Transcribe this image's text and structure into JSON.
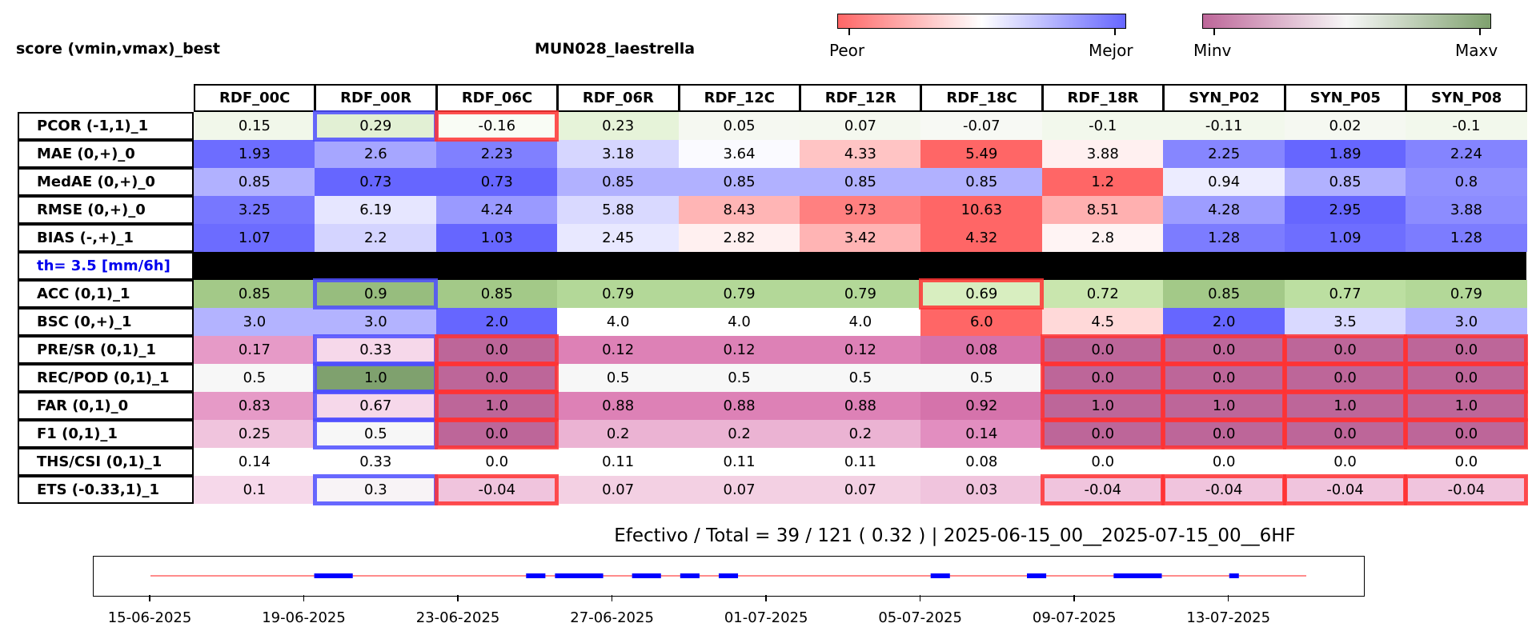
{
  "header": {
    "left_title": "score (vmin,vmax)_best",
    "station": "MUN028_laestrella"
  },
  "colorbars": {
    "score": {
      "left_label": "Peor",
      "right_label": "Mejor",
      "low": "#ff6666",
      "mid": "#ffffff",
      "high": "#6666ff"
    },
    "contingency": {
      "left_label": "Minv",
      "right_label": "Maxv",
      "low": "#bd6699",
      "mid": "#f7f7f7",
      "high": "#7fa16e"
    }
  },
  "table": {
    "columns": [
      "RDF_00C",
      "RDF_00R",
      "RDF_06C",
      "RDF_06R",
      "RDF_12C",
      "RDF_12R",
      "RDF_18C",
      "RDF_18R",
      "SYN_P02",
      "SYN_P05",
      "SYN_P08"
    ],
    "threshold_label": "th= 3.5 [mm/6h]",
    "rows": [
      {
        "label": "PCOR (-1,1)_1",
        "values": [
          "0.15",
          "0.29",
          "-0.16",
          "0.23",
          "0.05",
          "0.07",
          "-0.07",
          "-0.1",
          "-0.11",
          "0.02",
          "-0.1"
        ],
        "colors": [
          "#f1f7ea",
          "#e2f0d4",
          "#f9fcf5",
          "#e6f3d9",
          "#f5f8f1",
          "#f4f8ef",
          "#f7f9f4",
          "#f2f8ec",
          "#f2f8ec",
          "#f5f8f1",
          "#f2f8ec"
        ]
      },
      {
        "label": "MAE (0,+)_0",
        "values": [
          "1.93",
          "2.6",
          "2.23",
          "3.18",
          "3.64",
          "4.33",
          "5.49",
          "3.88",
          "2.25",
          "1.89",
          "2.24"
        ],
        "colors": [
          "#6d6dff",
          "#a6a6ff",
          "#8080ff",
          "#d6d6ff",
          "#fafaff",
          "#ffc4c4",
          "#ff6666",
          "#fff0f0",
          "#8686ff",
          "#6666ff",
          "#8484ff"
        ]
      },
      {
        "label": "MedAE (0,+)_0",
        "values": [
          "0.85",
          "0.73",
          "0.73",
          "0.85",
          "0.85",
          "0.85",
          "0.85",
          "1.2",
          "0.94",
          "0.85",
          "0.8"
        ],
        "colors": [
          "#b1b1ff",
          "#6666ff",
          "#6666ff",
          "#b1b1ff",
          "#b1b1ff",
          "#b1b1ff",
          "#b1b1ff",
          "#ff6666",
          "#ececff",
          "#b1b1ff",
          "#9191ff"
        ]
      },
      {
        "label": "RMSE (0,+)_0",
        "values": [
          "3.25",
          "6.19",
          "4.24",
          "5.88",
          "8.43",
          "9.73",
          "10.63",
          "8.51",
          "4.28",
          "2.95",
          "3.88"
        ],
        "colors": [
          "#7777ff",
          "#e6e6ff",
          "#9a9aff",
          "#d9d9ff",
          "#ffb5b5",
          "#ff8080",
          "#ff6666",
          "#ffb0b0",
          "#9d9dff",
          "#6666ff",
          "#8c8cff"
        ]
      },
      {
        "label": "BIAS (-,+)_1",
        "values": [
          "1.07",
          "2.2",
          "1.03",
          "2.45",
          "2.82",
          "3.42",
          "4.32",
          "2.8",
          "1.28",
          "1.09",
          "1.28"
        ],
        "colors": [
          "#6c6cff",
          "#d4d4ff",
          "#6666ff",
          "#e8e8ff",
          "#fff0f0",
          "#ffb4b4",
          "#ff6666",
          "#fff4f4",
          "#7c7cff",
          "#6e6eff",
          "#7c7cff"
        ]
      },
      {
        "label": "ACC (0,1)_1",
        "values": [
          "0.85",
          "0.9",
          "0.85",
          "0.79",
          "0.79",
          "0.79",
          "0.69",
          "0.72",
          "0.85",
          "0.77",
          "0.79"
        ],
        "colors": [
          "#a3c988",
          "#97bd7e",
          "#a3c988",
          "#b3d898",
          "#b3d898",
          "#b3d898",
          "#d8eec0",
          "#c9e6ae",
          "#a3c988",
          "#bcdfa1",
          "#b3d898"
        ]
      },
      {
        "label": "BSC (0,+)_1",
        "values": [
          "3.0",
          "3.0",
          "2.0",
          "4.0",
          "4.0",
          "4.0",
          "6.0",
          "4.5",
          "2.0",
          "3.5",
          "3.0"
        ],
        "colors": [
          "#b3b3ff",
          "#b3b3ff",
          "#6666ff",
          "#ffffff",
          "#ffffff",
          "#ffffff",
          "#ff6666",
          "#ffd9d9",
          "#6666ff",
          "#d9d9ff",
          "#b3b3ff"
        ]
      },
      {
        "label": "PRE/SR (0,1)_1",
        "values": [
          "0.17",
          "0.33",
          "0.0",
          "0.12",
          "0.12",
          "0.12",
          "0.08",
          "0.0",
          "0.0",
          "0.0",
          "0.0"
        ],
        "colors": [
          "#e69ac7",
          "#f6d8ea",
          "#bd6699",
          "#dd81b6",
          "#dd81b6",
          "#dd81b6",
          "#d573ab",
          "#bd6699",
          "#bd6699",
          "#bd6699",
          "#bd6699"
        ]
      },
      {
        "label": "REC/POD (0,1)_1",
        "values": [
          "0.5",
          "1.0",
          "0.0",
          "0.5",
          "0.5",
          "0.5",
          "0.5",
          "0.0",
          "0.0",
          "0.0",
          "0.0"
        ],
        "colors": [
          "#f7f7f7",
          "#7fa16e",
          "#bd6699",
          "#f7f7f7",
          "#f7f7f7",
          "#f7f7f7",
          "#f7f7f7",
          "#bd6699",
          "#bd6699",
          "#bd6699",
          "#bd6699"
        ]
      },
      {
        "label": "FAR (0,1)_0",
        "values": [
          "0.83",
          "0.67",
          "1.0",
          "0.88",
          "0.88",
          "0.88",
          "0.92",
          "1.0",
          "1.0",
          "1.0",
          "1.0"
        ],
        "colors": [
          "#e69ac7",
          "#f6d8ea",
          "#bd6699",
          "#dd81b6",
          "#dd81b6",
          "#dd81b6",
          "#d573ab",
          "#bd6699",
          "#bd6699",
          "#bd6699",
          "#bd6699"
        ]
      },
      {
        "label": "F1 (0,1)_1",
        "values": [
          "0.25",
          "0.5",
          "0.0",
          "0.2",
          "0.2",
          "0.2",
          "0.14",
          "0.0",
          "0.0",
          "0.0",
          "0.0"
        ],
        "colors": [
          "#f0c4dd",
          "#f7f7f7",
          "#bd6699",
          "#ebb3d3",
          "#ebb3d3",
          "#ebb3d3",
          "#e28ec0",
          "#bd6699",
          "#bd6699",
          "#bd6699",
          "#bd6699"
        ]
      },
      {
        "label": "THS/CSI (0,1)_1",
        "values": [
          "0.14",
          "0.33",
          "0.0",
          "0.11",
          "0.11",
          "0.11",
          "0.08",
          "0.0",
          "0.0",
          "0.0",
          "0.0"
        ],
        "colors": [
          "#ffffff",
          "#ffffff",
          "#ffffff",
          "#ffffff",
          "#ffffff",
          "#ffffff",
          "#ffffff",
          "#ffffff",
          "#ffffff",
          "#ffffff",
          "#ffffff"
        ]
      },
      {
        "label": "ETS (-0.33,1)_1",
        "values": [
          "0.1",
          "0.3",
          "-0.04",
          "0.07",
          "0.07",
          "0.07",
          "0.03",
          "-0.04",
          "-0.04",
          "-0.04",
          "-0.04"
        ],
        "colors": [
          "#f6d8ea",
          "#f8f3f6",
          "#f0c4dd",
          "#f3d0e3",
          "#f3d0e3",
          "#f3d0e3",
          "#f0c4dd",
          "#f0c4dd",
          "#f0c4dd",
          "#f0c4dd",
          "#f0c4dd"
        ]
      }
    ],
    "highlights": [
      {
        "row": 0,
        "col": 1,
        "kind": "best"
      },
      {
        "row": 0,
        "col": 2,
        "kind": "worst"
      },
      {
        "row": 5,
        "col": 1,
        "kind": "best"
      },
      {
        "row": 5,
        "col": 6,
        "kind": "worst"
      },
      {
        "row": 7,
        "col": 1,
        "kind": "best"
      },
      {
        "row": 8,
        "col": 1,
        "kind": "best"
      },
      {
        "row": 9,
        "col": 1,
        "kind": "best"
      },
      {
        "row": 10,
        "col": 1,
        "kind": "best"
      },
      {
        "row": 12,
        "col": 1,
        "kind": "best"
      },
      {
        "row": 7,
        "col": 2,
        "kind": "worst"
      },
      {
        "row": 8,
        "col": 2,
        "kind": "worst"
      },
      {
        "row": 9,
        "col": 2,
        "kind": "worst"
      },
      {
        "row": 10,
        "col": 2,
        "kind": "worst"
      },
      {
        "row": 12,
        "col": 2,
        "kind": "worst"
      },
      {
        "row": 7,
        "col": 7,
        "kind": "worst"
      },
      {
        "row": 7,
        "col": 8,
        "kind": "worst"
      },
      {
        "row": 7,
        "col": 9,
        "kind": "worst"
      },
      {
        "row": 7,
        "col": 10,
        "kind": "worst"
      },
      {
        "row": 8,
        "col": 7,
        "kind": "worst"
      },
      {
        "row": 8,
        "col": 8,
        "kind": "worst"
      },
      {
        "row": 8,
        "col": 9,
        "kind": "worst"
      },
      {
        "row": 8,
        "col": 10,
        "kind": "worst"
      },
      {
        "row": 9,
        "col": 7,
        "kind": "worst"
      },
      {
        "row": 9,
        "col": 8,
        "kind": "worst"
      },
      {
        "row": 9,
        "col": 9,
        "kind": "worst"
      },
      {
        "row": 9,
        "col": 10,
        "kind": "worst"
      },
      {
        "row": 10,
        "col": 7,
        "kind": "worst"
      },
      {
        "row": 10,
        "col": 8,
        "kind": "worst"
      },
      {
        "row": 10,
        "col": 9,
        "kind": "worst"
      },
      {
        "row": 10,
        "col": 10,
        "kind": "worst"
      },
      {
        "row": 12,
        "col": 7,
        "kind": "worst"
      },
      {
        "row": 12,
        "col": 8,
        "kind": "worst"
      },
      {
        "row": 12,
        "col": 9,
        "kind": "worst"
      },
      {
        "row": 12,
        "col": 10,
        "kind": "worst"
      }
    ],
    "highlight_colors": {
      "best": "#4d4dff",
      "worst": "#ff3333"
    }
  },
  "summary": "Efectivo / Total  =  39 / 121 ( 0.32 ) | 2025-06-15_00__2025-07-15_00__6HF",
  "chart_data": {
    "type": "timeline",
    "x_range": [
      "2025-06-15",
      "2025-07-15"
    ],
    "tick_labels": [
      "15-06-2025",
      "19-06-2025",
      "23-06-2025",
      "27-06-2025",
      "01-07-2025",
      "05-07-2025",
      "09-07-2025",
      "13-07-2025"
    ],
    "baseline": {
      "start": "2025-06-15",
      "end": "2025-07-15",
      "color": "#ff6666"
    },
    "event_segments": [
      [
        "2025-06-19 06:00",
        "2025-06-20 06:00"
      ],
      [
        "2025-06-24 18:00",
        "2025-06-25 06:00"
      ],
      [
        "2025-06-25 12:00",
        "2025-06-26 18:00"
      ],
      [
        "2025-06-27 12:00",
        "2025-06-28 06:00"
      ],
      [
        "2025-06-28 18:00",
        "2025-06-29 06:00"
      ],
      [
        "2025-06-29 18:00",
        "2025-06-30 06:00"
      ],
      [
        "2025-07-05 06:00",
        "2025-07-05 18:00"
      ],
      [
        "2025-07-07 18:00",
        "2025-07-08 06:00"
      ],
      [
        "2025-07-10 00:00",
        "2025-07-11 06:00"
      ],
      [
        "2025-07-13 00:00",
        "2025-07-13 06:00"
      ]
    ],
    "event_color": "#0000ff"
  }
}
